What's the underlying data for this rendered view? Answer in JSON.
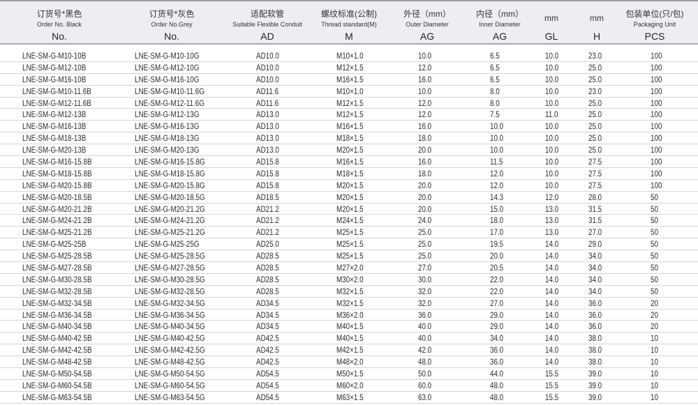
{
  "header": [
    {
      "zh": "订货号*黑色",
      "en": "Order No. Black",
      "code": "No."
    },
    {
      "zh": "订货号*灰色",
      "en": "Order No.Grey",
      "code": "No."
    },
    {
      "zh": "适配软管",
      "en": "Suitable Flexible Conduit",
      "code": "AD"
    },
    {
      "zh": "螺纹标准(公制)",
      "en": "Thread standard(M)",
      "code": "M"
    },
    {
      "zh": "外径（mm）",
      "en": "Outer Diameter",
      "code": "AG"
    },
    {
      "zh": "内径（mm）",
      "en": "Inner Diameter",
      "code": "AG"
    },
    {
      "zh": "mm",
      "en": "",
      "code": "GL"
    },
    {
      "zh": "mm",
      "en": "",
      "code": "H"
    },
    {
      "zh": "包装单位(只/包)",
      "en": "Packaging Unit",
      "code": "PCS"
    }
  ],
  "rows": [
    [
      "LNE-SM-G-M10-10B",
      "LNE-SM-G-M10-10G",
      "AD10.0",
      "M10×1.0",
      "10.0",
      "6.5",
      "10.0",
      "23.0",
      "100"
    ],
    [
      "LNE-SM-G-M12-10B",
      "LNE-SM-G-M12-10G",
      "AD10.0",
      "M12×1.5",
      "12.0",
      "6.5",
      "10.0",
      "25.0",
      "100"
    ],
    [
      "LNE-SM-G-M16-10B",
      "LNE-SM-G-M16-10G",
      "AD10.0",
      "M16×1.5",
      "16.0",
      "6.5",
      "10.0",
      "25.0",
      "100"
    ],
    [
      "LNE-SM-G-M10-11.6B",
      "LNE-SM-G-M10-11.6G",
      "AD11.6",
      "M10×1.0",
      "10.0",
      "8.0",
      "10.0",
      "23.0",
      "100"
    ],
    [
      "LNE-SM-G-M12-11.6B",
      "LNE-SM-G-M12-11.6G",
      "AD11.6",
      "M12×1.5",
      "12.0",
      "8.0",
      "10.0",
      "25.0",
      "100"
    ],
    [
      "LNE-SM-G-M12-13B",
      "LNE-SM-G-M12-13G",
      "AD13.0",
      "M12×1.5",
      "12.0",
      "7.5",
      "11.0",
      "25.0",
      "100"
    ],
    [
      "LNE-SM-G-M16-13B",
      "LNE-SM-G-M16-13G",
      "AD13.0",
      "M16×1.5",
      "16.0",
      "10.0",
      "10.0",
      "25.0",
      "100"
    ],
    [
      "LNE-SM-G-M18-13B",
      "LNE-SM-G-M18-13G",
      "AD13.0",
      "M18×1.5",
      "18.0",
      "10.0",
      "10.0",
      "25.0",
      "100"
    ],
    [
      "LNE-SM-G-M20-13B",
      "LNE-SM-G-M20-13G",
      "AD13.0",
      "M20×1.5",
      "20.0",
      "10.0",
      "10.0",
      "25.0",
      "100"
    ],
    [
      "LNE-SM-G-M16-15.8B",
      "LNE-SM-G-M16-15.8G",
      "AD15.8",
      "M16×1.5",
      "16.0",
      "11.5",
      "10.0",
      "27.5",
      "100"
    ],
    [
      "LNE-SM-G-M18-15.8B",
      "LNE-SM-G-M18-15.8G",
      "AD15.8",
      "M18×1.5",
      "18.0",
      "12.0",
      "10.0",
      "27.5",
      "100"
    ],
    [
      "LNE-SM-G-M20-15.8B",
      "LNE-SM-G-M20-15.8G",
      "AD15.8",
      "M20×1.5",
      "20.0",
      "12.0",
      "10.0",
      "27.5",
      "100"
    ],
    [
      "LNE-SM-G-M20-18.5B",
      "LNE-SM-G-M20-18.5G",
      "AD18.5",
      "M20×1.5",
      "20.0",
      "14.3",
      "12.0",
      "28.0",
      "50"
    ],
    [
      "LNE-SM-G-M20-21.2B",
      "LNE-SM-G-M20-21.2G",
      "AD21.2",
      "M20×1.5",
      "20.0",
      "15.0",
      "13.0",
      "31.5",
      "50"
    ],
    [
      "LNE-SM-G-M24-21.2B",
      "LNE-SM-G-M24-21.2G",
      "AD21.2",
      "M24×1.5",
      "24.0",
      "18.0",
      "13.0",
      "31.5",
      "50"
    ],
    [
      "LNE-SM-G-M25-21.2B",
      "LNE-SM-G-M25-21.2G",
      "AD21.2",
      "M25×1.5",
      "25.0",
      "17.0",
      "13.0",
      "27.0",
      "50"
    ],
    [
      "LNE-SM-G-M25-25B",
      "LNE-SM-G-M25-25G",
      "AD25.0",
      "M25×1.5",
      "25.0",
      "19.5",
      "14.0",
      "29.0",
      "50"
    ],
    [
      "LNE-SM-G-M25-28.5B",
      "LNE-SM-G-M25-28.5G",
      "AD28.5",
      "M25×1.5",
      "25.0",
      "20.0",
      "14.0",
      "34.0",
      "50"
    ],
    [
      "LNE-SM-G-M27-28.5B",
      "LNE-SM-G-M27-28.5G",
      "AD28.5",
      "M27×2.0",
      "27.0",
      "20.5",
      "14.0",
      "34.0",
      "50"
    ],
    [
      "LNE-SM-G-M30-28.5B",
      "LNE-SM-G-M30-28.5G",
      "AD28.5",
      "M30×2.0",
      "30.0",
      "22.0",
      "14.0",
      "34.0",
      "50"
    ],
    [
      "LNE-SM-G-M32-28.5B",
      "LNE-SM-G-M32-28.5G",
      "AD28.5",
      "M32×1.5",
      "32.0",
      "22.0",
      "14.0",
      "34.0",
      "50"
    ],
    [
      "LNE-SM-G-M32-34.5B",
      "LNE-SM-G-M32-34.5G",
      "AD34.5",
      "M32×1.5",
      "32.0",
      "27.0",
      "14.0",
      "36.0",
      "20"
    ],
    [
      "LNE-SM-G-M36-34.5B",
      "LNE-SM-G-M36-34.5G",
      "AD34.5",
      "M36×2.0",
      "36.0",
      "29.0",
      "14.0",
      "36.0",
      "20"
    ],
    [
      "LNE-SM-G-M40-34.5B",
      "LNE-SM-G-M40-34.5G",
      "AD34.5",
      "M40×1.5",
      "40.0",
      "29.0",
      "14.0",
      "36.0",
      "20"
    ],
    [
      "LNE-SM-G-M40-42.5B",
      "LNE-SM-G-M40-42.5G",
      "AD42.5",
      "M40×1.5",
      "40.0",
      "34.0",
      "14.0",
      "38.0",
      "10"
    ],
    [
      "LNE-SM-G-M42-42.5B",
      "LNE-SM-G-M42-42.5G",
      "AD42.5",
      "M42×1.5",
      "42.0",
      "36.0",
      "14.0",
      "38.0",
      "10"
    ],
    [
      "LNE-SM-G-M48-42.5B",
      "LNE-SM-G-M48-42.5G",
      "AD42.5",
      "M48×2.0",
      "48.0",
      "36.0",
      "14.0",
      "38.0",
      "10"
    ],
    [
      "LNE-SM-G-M50-54.5B",
      "LNE-SM-G-M50-54.5G",
      "AD54.5",
      "M50×1.5",
      "50.0",
      "44.0",
      "15.5",
      "39.0",
      "10"
    ],
    [
      "LNE-SM-G-M60-54.5B",
      "LNE-SM-G-M60-54.5G",
      "AD54.5",
      "M60×2.0",
      "60.0",
      "48.0",
      "15.5",
      "39.0",
      "10"
    ],
    [
      "LNE-SM-G-M63-54.5B",
      "LNE-SM-G-M63-54.5G",
      "AD54.5",
      "M63×1.5",
      "63.0",
      "48.0",
      "15.5",
      "39.0",
      "10"
    ]
  ]
}
